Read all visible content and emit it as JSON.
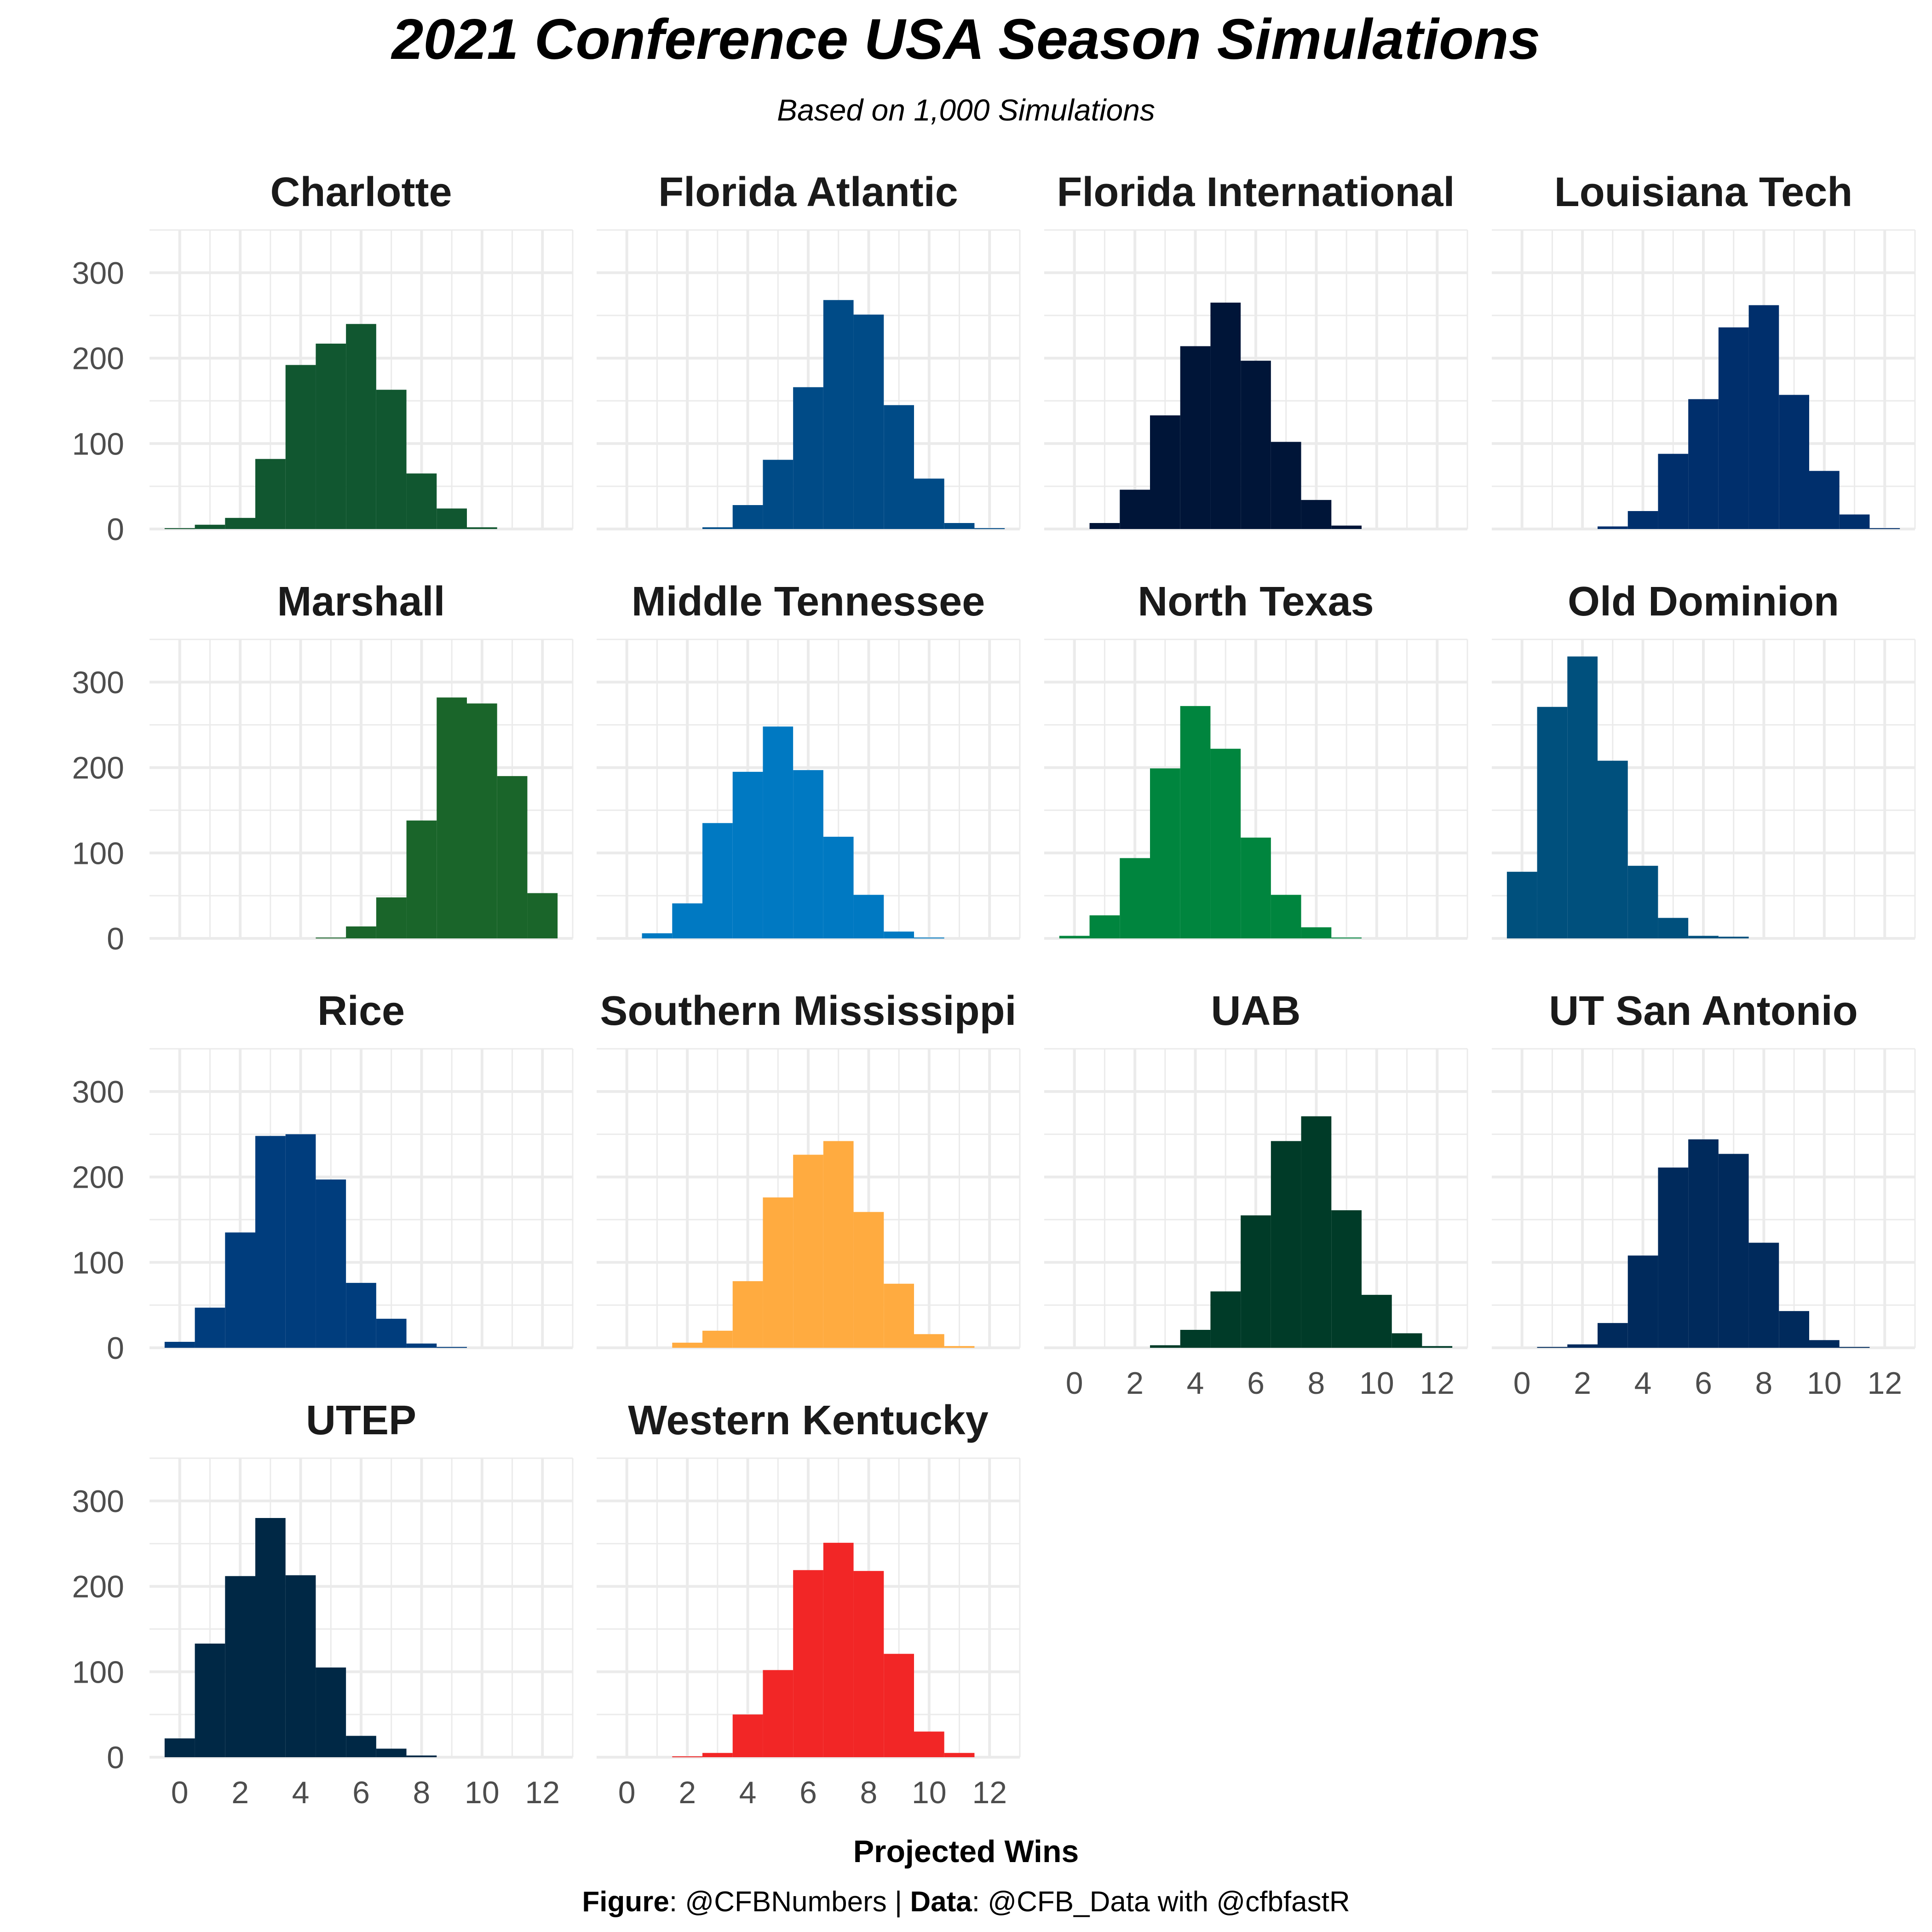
{
  "title": "2021 Conference USA Season Simulations",
  "subtitle": "Based on 1,000 Simulations",
  "caption": {
    "figure_label": "Figure",
    "figure_value": ": @CFBNumbers | ",
    "data_label": "Data",
    "data_value": ": @CFB_Data with @cfbfastR"
  },
  "chart_data": {
    "type": "bar",
    "chart_kind": "faceted histogram",
    "xlabel": "Projected Wins",
    "ylabel": "",
    "xlim": [
      -1,
      13
    ],
    "ylim": [
      0,
      350
    ],
    "x_ticks": [
      "0",
      "2",
      "4",
      "6",
      "8",
      "10",
      "12"
    ],
    "y_ticks": [
      "0",
      "100",
      "200",
      "300"
    ],
    "grid": true,
    "layout": "4 columns",
    "series": [
      {
        "name": "Charlotte",
        "color": "#115730",
        "bins_x": [
          0,
          1,
          2,
          3,
          4,
          5,
          6,
          7,
          8,
          9,
          10,
          11,
          12
        ],
        "values": [
          1,
          5,
          13,
          82,
          192,
          217,
          240,
          163,
          65,
          24,
          2,
          0,
          0
        ]
      },
      {
        "name": "Florida Atlantic",
        "color": "#004B87",
        "bins_x": [
          0,
          1,
          2,
          3,
          4,
          5,
          6,
          7,
          8,
          9,
          10,
          11,
          12
        ],
        "values": [
          0,
          0,
          0,
          2,
          28,
          81,
          166,
          268,
          251,
          145,
          59,
          7,
          1
        ]
      },
      {
        "name": "Florida International",
        "color": "#001538",
        "bins_x": [
          0,
          1,
          2,
          3,
          4,
          5,
          6,
          7,
          8,
          9,
          10,
          11,
          12
        ],
        "values": [
          0,
          7,
          46,
          133,
          214,
          265,
          197,
          102,
          34,
          4,
          0,
          0,
          0
        ]
      },
      {
        "name": "Louisiana Tech",
        "color": "#002F6C",
        "bins_x": [
          0,
          1,
          2,
          3,
          4,
          5,
          6,
          7,
          8,
          9,
          10,
          11,
          12
        ],
        "values": [
          0,
          0,
          0,
          3,
          21,
          88,
          152,
          236,
          262,
          157,
          68,
          17,
          1
        ]
      },
      {
        "name": "Marshall",
        "color": "#1A652A",
        "bins_x": [
          0,
          1,
          2,
          3,
          4,
          5,
          6,
          7,
          8,
          9,
          10,
          11,
          12
        ],
        "values": [
          0,
          0,
          0,
          0,
          0,
          1,
          14,
          48,
          138,
          282,
          275,
          190,
          53
        ]
      },
      {
        "name": "Middle Tennessee",
        "color": "#0079C2",
        "bins_x": [
          0,
          1,
          2,
          3,
          4,
          5,
          6,
          7,
          8,
          9,
          10,
          11,
          12
        ],
        "values": [
          0,
          6,
          41,
          135,
          195,
          248,
          197,
          119,
          51,
          8,
          1,
          0,
          0
        ]
      },
      {
        "name": "North Texas",
        "color": "#00853E",
        "bins_x": [
          0,
          1,
          2,
          3,
          4,
          5,
          6,
          7,
          8,
          9,
          10,
          11,
          12
        ],
        "values": [
          3,
          27,
          94,
          199,
          272,
          222,
          118,
          51,
          13,
          1,
          0,
          0,
          0
        ]
      },
      {
        "name": "Old Dominion",
        "color": "#00507D",
        "bins_x": [
          0,
          1,
          2,
          3,
          4,
          5,
          6,
          7,
          8,
          9,
          10,
          11,
          12
        ],
        "values": [
          78,
          271,
          330,
          208,
          85,
          24,
          3,
          2,
          0,
          0,
          0,
          0,
          0
        ]
      },
      {
        "name": "Rice",
        "color": "#003D7D",
        "bins_x": [
          0,
          1,
          2,
          3,
          4,
          5,
          6,
          7,
          8,
          9,
          10,
          11,
          12
        ],
        "values": [
          7,
          47,
          135,
          248,
          250,
          197,
          76,
          34,
          5,
          1,
          0,
          0,
          0
        ]
      },
      {
        "name": "Southern Mississippi",
        "color": "#FFAB40",
        "bins_x": [
          0,
          1,
          2,
          3,
          4,
          5,
          6,
          7,
          8,
          9,
          10,
          11,
          12
        ],
        "values": [
          0,
          0,
          6,
          20,
          78,
          176,
          226,
          242,
          159,
          75,
          16,
          2,
          0
        ]
      },
      {
        "name": "UAB",
        "color": "#003B28",
        "bins_x": [
          0,
          1,
          2,
          3,
          4,
          5,
          6,
          7,
          8,
          9,
          10,
          11,
          12
        ],
        "values": [
          0,
          0,
          0,
          3,
          21,
          66,
          155,
          242,
          271,
          161,
          62,
          17,
          2
        ]
      },
      {
        "name": "UT San Antonio",
        "color": "#002A5C",
        "bins_x": [
          0,
          1,
          2,
          3,
          4,
          5,
          6,
          7,
          8,
          9,
          10,
          11,
          12
        ],
        "values": [
          0,
          1,
          4,
          29,
          108,
          211,
          244,
          227,
          123,
          43,
          9,
          1,
          0
        ]
      },
      {
        "name": "UTEP",
        "color": "#002845",
        "bins_x": [
          0,
          1,
          2,
          3,
          4,
          5,
          6,
          7,
          8,
          9,
          10,
          11,
          12
        ],
        "values": [
          22,
          133,
          212,
          280,
          213,
          105,
          25,
          10,
          2,
          0,
          0,
          0,
          0
        ]
      },
      {
        "name": "Western Kentucky",
        "color": "#F22626",
        "bins_x": [
          0,
          1,
          2,
          3,
          4,
          5,
          6,
          7,
          8,
          9,
          10,
          11,
          12
        ],
        "values": [
          0,
          0,
          1,
          5,
          50,
          102,
          219,
          251,
          218,
          121,
          30,
          5,
          0
        ]
      }
    ]
  }
}
